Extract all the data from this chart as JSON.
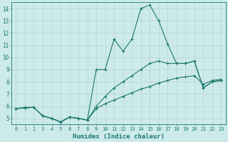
{
  "xlabel": "Humidex (Indice chaleur)",
  "xlim": [
    -0.5,
    23.5
  ],
  "ylim": [
    4.5,
    14.5
  ],
  "xticks": [
    0,
    1,
    2,
    3,
    4,
    5,
    6,
    7,
    8,
    9,
    10,
    11,
    12,
    13,
    14,
    15,
    16,
    17,
    18,
    19,
    20,
    21,
    22,
    23
  ],
  "yticks": [
    5,
    6,
    7,
    8,
    9,
    10,
    11,
    12,
    13,
    14
  ],
  "background_color": "#cdeaea",
  "grid_color": "#b8d8d8",
  "line_color": "#1a7a6e",
  "line1_y": [
    5.8,
    5.9,
    5.9,
    5.2,
    5.0,
    4.7,
    5.1,
    5.0,
    4.85,
    9.0,
    9.0,
    11.5,
    10.5,
    11.5,
    14.0,
    14.3,
    13.0,
    11.1,
    9.5,
    9.5,
    9.7,
    7.5,
    8.0,
    8.1
  ],
  "line2_y": [
    5.8,
    5.85,
    5.9,
    5.2,
    5.0,
    4.7,
    5.1,
    5.0,
    4.85,
    6.0,
    6.8,
    7.5,
    8.0,
    8.5,
    9.0,
    9.5,
    9.7,
    9.5,
    9.5,
    9.5,
    9.7,
    7.5,
    8.0,
    8.1
  ],
  "line3_y": [
    5.8,
    5.85,
    5.9,
    5.2,
    5.0,
    4.7,
    5.1,
    5.0,
    4.85,
    5.8,
    6.2,
    6.5,
    6.8,
    7.1,
    7.4,
    7.6,
    7.9,
    8.1,
    8.3,
    8.4,
    8.5,
    7.8,
    8.1,
    8.2
  ]
}
